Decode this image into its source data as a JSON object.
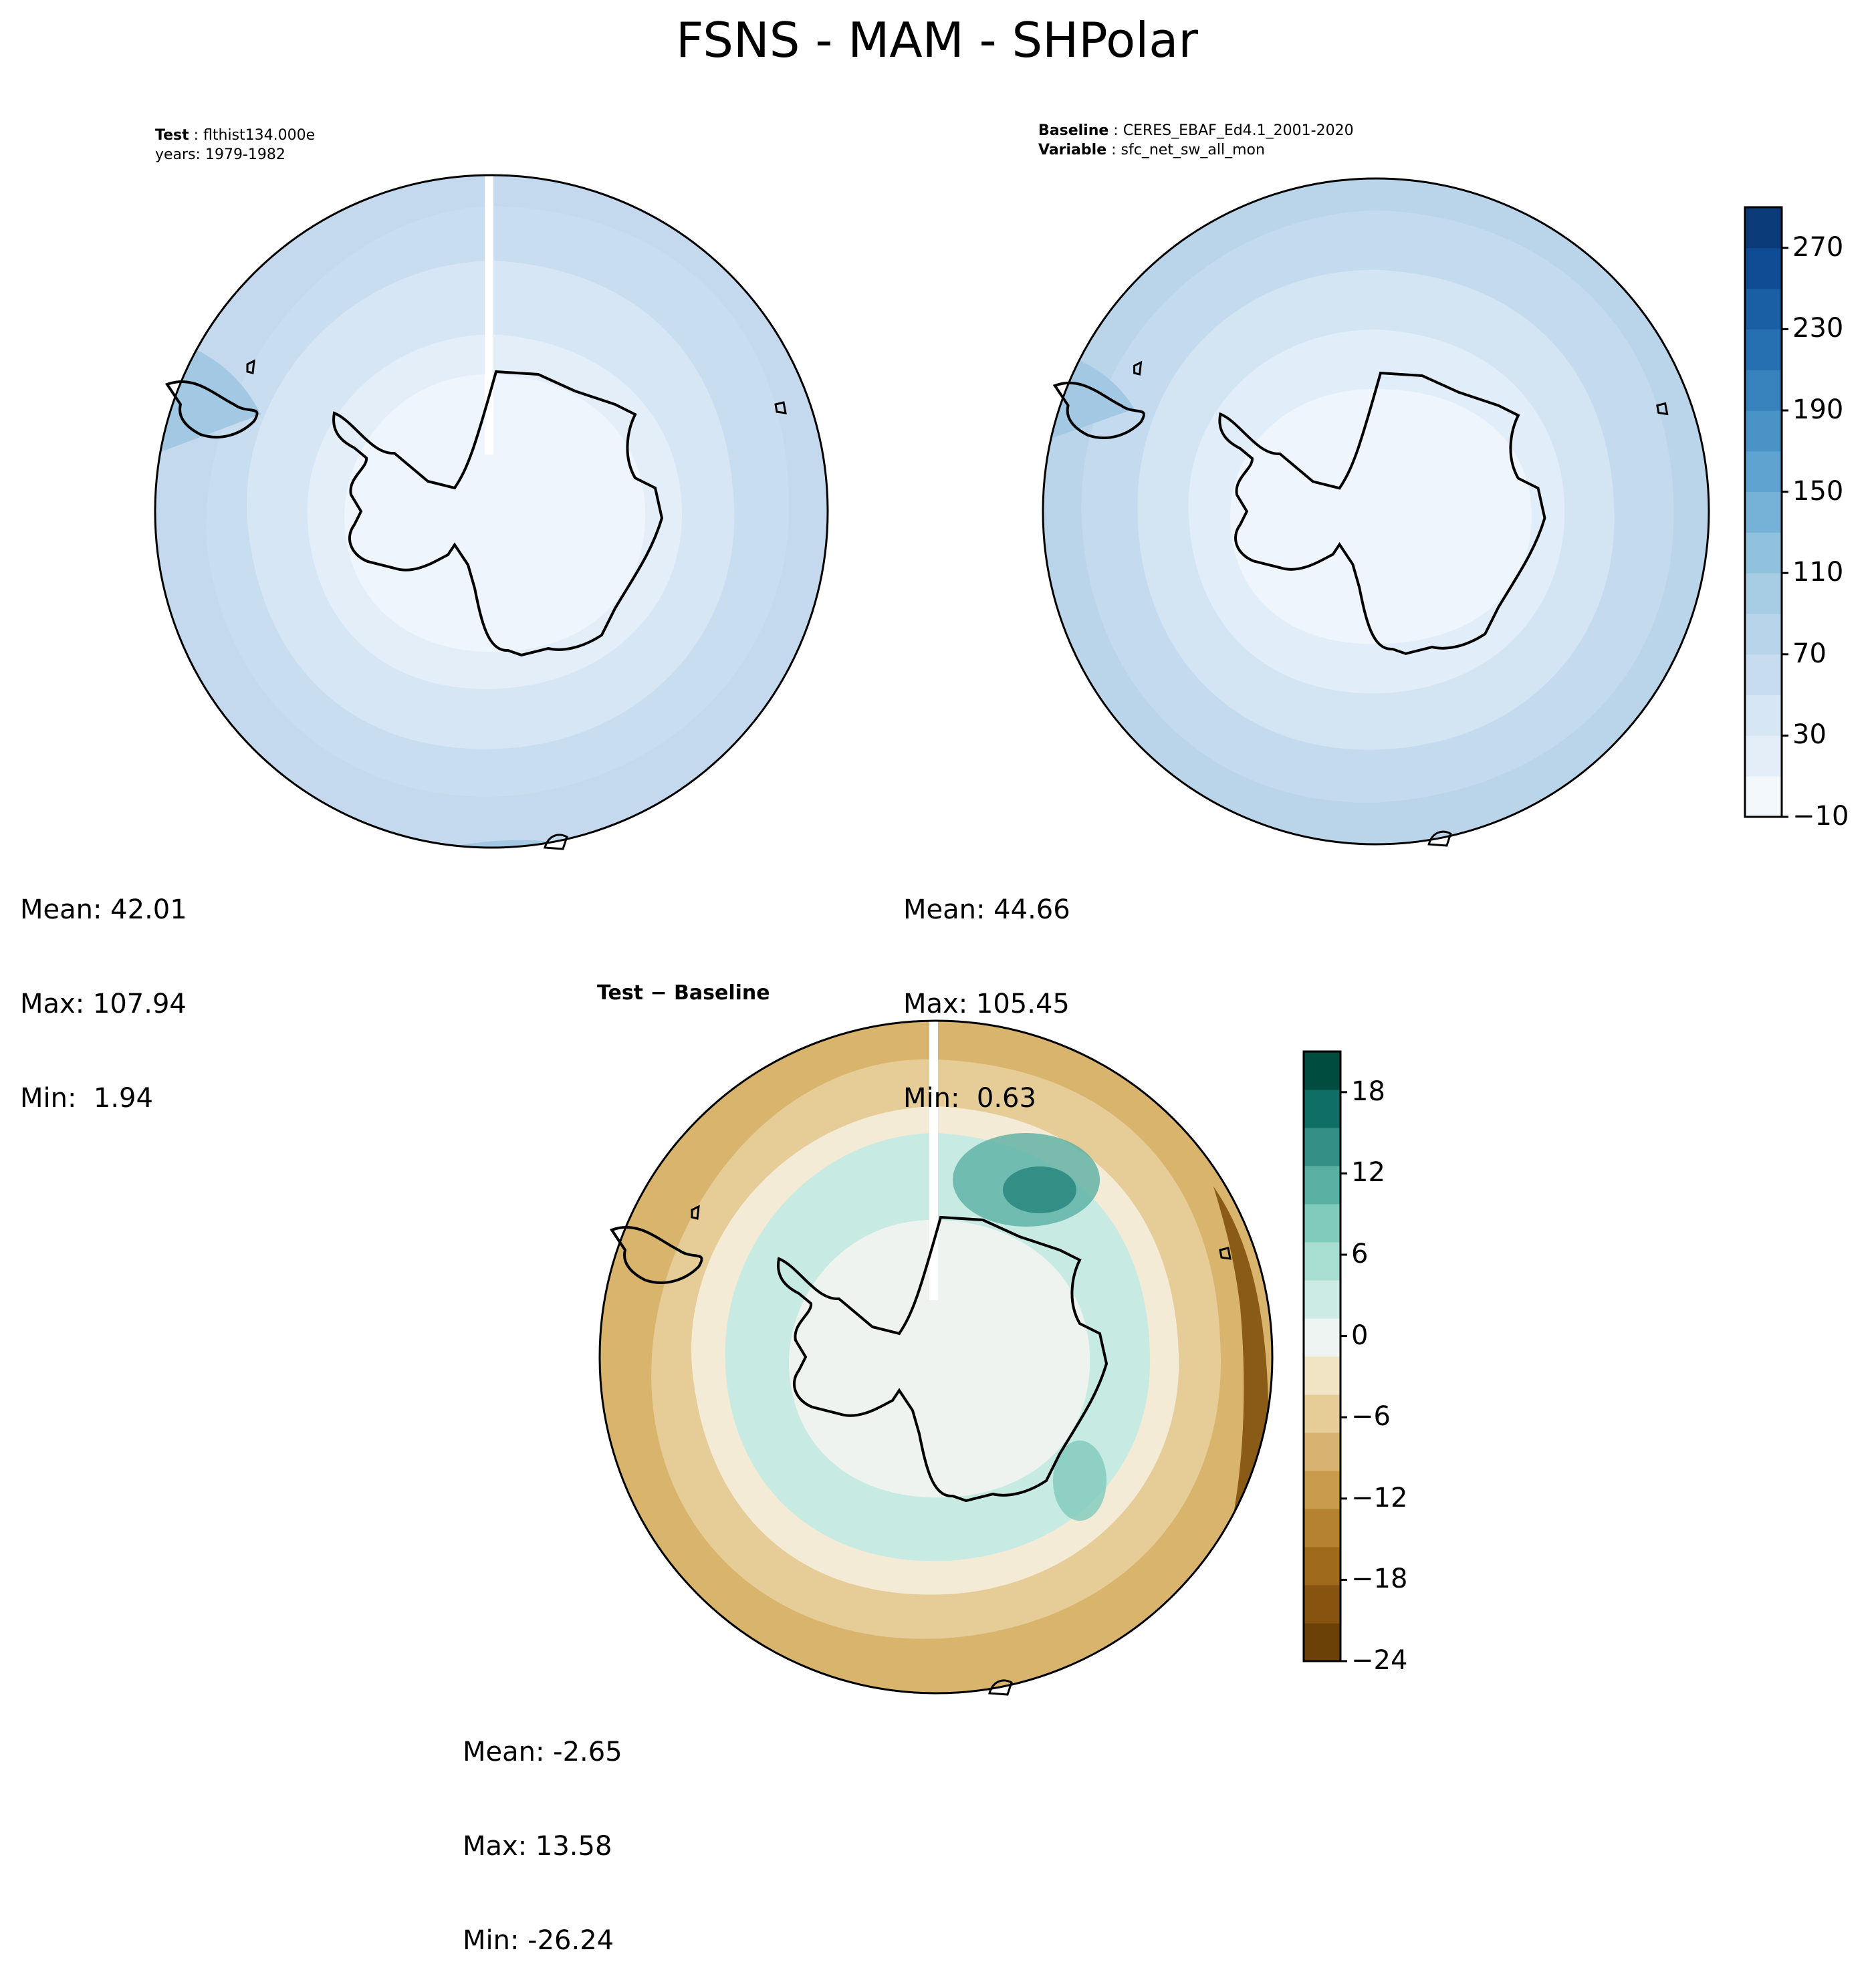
{
  "figure": {
    "title": "FSNS - MAM - SHPolar"
  },
  "panels": {
    "test": {
      "label": "Test",
      "case": "flthist134.000e",
      "years": "years: 1979-1982",
      "mean": "Mean: 42.01",
      "max": "Max: 107.94",
      "min": "Min:  1.94"
    },
    "baseline": {
      "label": "Baseline",
      "dataset": "CERES_EBAF_Ed4.1_2001-2020",
      "variable_label": "Variable",
      "variable": "sfc_net_sw_all_mon",
      "mean": "Mean: 44.66",
      "max": "Max: 105.45",
      "min": "Min:  0.63"
    },
    "diff": {
      "label": "Test − Baseline",
      "mean": "Mean: -2.65",
      "max": "Max: 13.58",
      "min": "Min: -26.24"
    }
  },
  "colorbars": {
    "main": {
      "colormap": "Blues",
      "ticks": [
        "−10",
        "30",
        "70",
        "110",
        "150",
        "190",
        "230",
        "270"
      ],
      "levels": [
        -10,
        10,
        30,
        50,
        70,
        90,
        110,
        130,
        150,
        170,
        190,
        210,
        230,
        250,
        270,
        290
      ],
      "colors": [
        "#f3f8fd",
        "#e3eef9",
        "#d6e6f4",
        "#c8dcf0",
        "#b8d4ea",
        "#a6cce4",
        "#90c1dd",
        "#76b2d8",
        "#5fa3d0",
        "#4a93c7",
        "#3781bd",
        "#266fb1",
        "#1a5ea4",
        "#0f4c93",
        "#0a3b78"
      ]
    },
    "diff": {
      "colormap": "BrBG",
      "ticks": [
        "−24",
        "−18",
        "−12",
        "−6",
        "0",
        "6",
        "12",
        "18"
      ],
      "levels": [
        -24,
        -21,
        -18,
        -15,
        -12,
        -9,
        -6,
        -3,
        0,
        3,
        6,
        9,
        12,
        15,
        18,
        21
      ],
      "colors": [
        "#6b4108",
        "#86540f",
        "#9f6a1b",
        "#b5832f",
        "#c89a4c",
        "#d7b271",
        "#e6cd98",
        "#f1e4c5",
        "#eef4f1",
        "#cbebe4",
        "#a8ddd2",
        "#80cbbc",
        "#5ab0a3",
        "#338f86",
        "#0f6e66",
        "#004d40"
      ]
    }
  },
  "map_fields": {
    "test_rings": [
      "#c5d9ee",
      "#c9ddf0",
      "#d6e6f4",
      "#e3eef9",
      "#eef5fc"
    ],
    "baseline_rings": [
      "#bad5ea",
      "#c4dbef",
      "#d3e4f3",
      "#e1edf8",
      "#eef5fc"
    ],
    "diff_zones": [
      "#d9b46d",
      "#e6cd98",
      "#f3ebd6",
      "#c7ebe3",
      "#eef3ef"
    ]
  }
}
